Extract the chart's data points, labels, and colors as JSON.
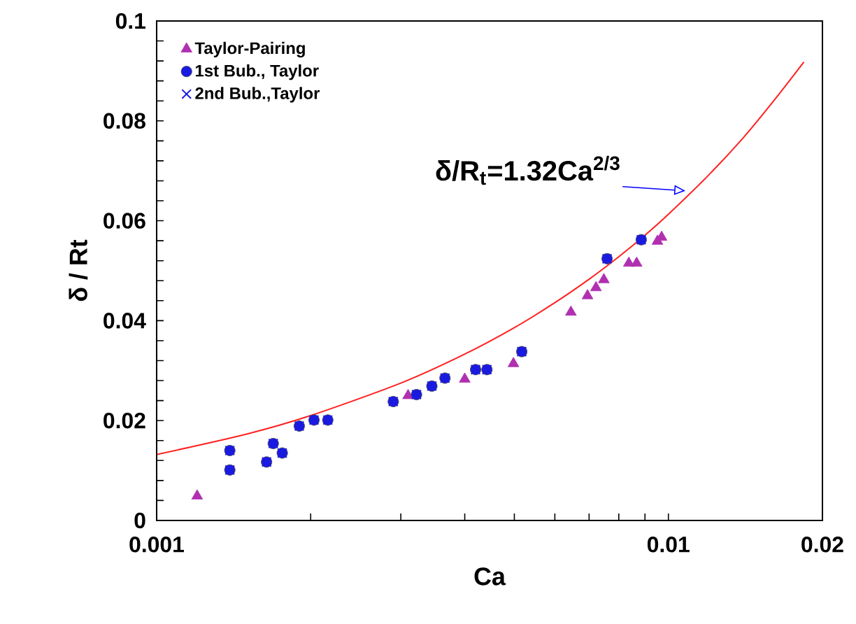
{
  "chart_data": {
    "type": "scatter",
    "xlabel": "Ca",
    "ylabel": "δ / Rt",
    "log": "x",
    "xlim": [
      0.001,
      0.02
    ],
    "ylim": [
      0,
      0.1
    ],
    "xticks": [
      0.001,
      {
        "value": 0.002,
        "label": null
      },
      {
        "value": 0.003,
        "label": null
      },
      {
        "value": 0.004,
        "label": null
      },
      {
        "value": 0.005,
        "label": null
      },
      {
        "value": 0.006,
        "label": null
      },
      {
        "value": 0.007,
        "label": null
      },
      {
        "value": 0.008,
        "label": null
      },
      {
        "value": 0.009,
        "label": null
      },
      0.01,
      0.02
    ],
    "yticks": [
      0,
      {
        "value": 0.004,
        "label": null
      },
      {
        "value": 0.008,
        "label": null
      },
      {
        "value": 0.012,
        "label": null
      },
      {
        "value": 0.016,
        "label": null
      },
      0.02,
      {
        "value": 0.024,
        "label": null
      },
      {
        "value": 0.028,
        "label": null
      },
      {
        "value": 0.032,
        "label": null
      },
      {
        "value": 0.036,
        "label": null
      },
      0.04,
      {
        "value": 0.044,
        "label": null
      },
      {
        "value": 0.048,
        "label": null
      },
      {
        "value": 0.052,
        "label": null
      },
      {
        "value": 0.056,
        "label": null
      },
      0.06,
      {
        "value": 0.064,
        "label": null
      },
      {
        "value": 0.068,
        "label": null
      },
      {
        "value": 0.072,
        "label": null
      },
      {
        "value": 0.076,
        "label": null
      },
      0.08,
      {
        "value": 0.084,
        "label": null
      },
      {
        "value": 0.088,
        "label": null
      },
      {
        "value": 0.092,
        "label": null
      },
      {
        "value": 0.096,
        "label": null
      },
      0.1
    ],
    "grid": false,
    "legend": "top left",
    "annotations": [
      {
        "text": "δ/R$_{t}$=1.32Ca$^{2/3}$",
        "x": 0.0108,
        "y": 0.066
      }
    ],
    "series": [
      {
        "name": "Taylor-Pairing",
        "marker": "triangle",
        "color": "#b030b0",
        "x": [
          0.0012,
          0.0031,
          0.004,
          0.00498,
          0.00645,
          0.00695,
          0.00722,
          0.00748,
          0.00837,
          0.00867,
          0.00952,
          0.0097
        ],
        "values": [
          0.0049,
          0.025,
          0.0283,
          0.0314,
          0.0417,
          0.045,
          0.0466,
          0.0482,
          0.0515,
          0.0515,
          0.0559,
          0.0567
        ]
      },
      {
        "name": "1st Bub., Taylor",
        "marker": "circle",
        "color": "#1a1ae0",
        "x": [
          0.00139,
          0.00139,
          0.00164,
          0.00169,
          0.00176,
          0.0019,
          0.00203,
          0.00216,
          0.0029,
          0.00322,
          0.00345,
          0.00366,
          0.0042,
          0.00442,
          0.00517,
          0.00759,
          0.00885
        ],
        "values": [
          0.014,
          0.0101,
          0.0117,
          0.0154,
          0.0135,
          0.0189,
          0.0201,
          0.0201,
          0.0238,
          0.0252,
          0.0269,
          0.0285,
          0.0302,
          0.0302,
          0.0338,
          0.0524,
          0.0562
        ]
      },
      {
        "name": "2nd Bub.,Taylor",
        "marker": "cross",
        "color": "#1a1ae0",
        "x": [
          0.00139,
          0.00139,
          0.00164,
          0.00169,
          0.00176,
          0.0019,
          0.00203,
          0.00216,
          0.0029,
          0.00322,
          0.00345,
          0.00366,
          0.0042,
          0.00442,
          0.00517,
          0.00759,
          0.00885
        ],
        "values": [
          0.014,
          0.0101,
          0.0117,
          0.0154,
          0.0135,
          0.0189,
          0.0201,
          0.0201,
          0.0238,
          0.0252,
          0.0269,
          0.0285,
          0.0302,
          0.0302,
          0.0338,
          0.0524,
          0.0562
        ]
      },
      {
        "type": "line",
        "color": "#ff2020",
        "line_style": "solid",
        "x": [
          0.001,
          0.0015,
          0.002,
          0.003,
          0.004,
          0.005,
          0.006,
          0.007,
          0.008,
          0.009,
          0.01,
          0.012,
          0.014,
          0.016,
          0.0184
        ],
        "values": [
          0.0132,
          0.0173,
          0.021,
          0.0275,
          0.0333,
          0.0386,
          0.0436,
          0.0483,
          0.0528,
          0.0571,
          0.0613,
          0.0692,
          0.0766,
          0.0838,
          0.0918
        ]
      }
    ]
  }
}
